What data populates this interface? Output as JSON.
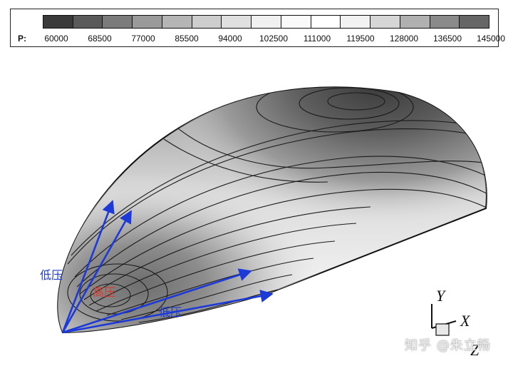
{
  "legend": {
    "label": "P:",
    "ticks": [
      "60000",
      "68500",
      "77000",
      "85500",
      "94000",
      "102500",
      "111000",
      "119500",
      "128000",
      "136500",
      "145000"
    ],
    "swatches": [
      "#3a3a3a",
      "#5a5a5a",
      "#7b7b7b",
      "#9a9a9a",
      "#b5b5b5",
      "#cdcdcd",
      "#e0e0e0",
      "#f0f0f0",
      "#fafafa",
      "#ffffff",
      "#f2f2f2",
      "#d6d6d6",
      "#b0b0b0",
      "#8a8a8a",
      "#666666"
    ]
  },
  "annotations": {
    "high_pressure": "高压",
    "low_pressure_left": "低压",
    "low_pressure_bottom": "低压"
  },
  "axes": {
    "y": "Y",
    "x": "X",
    "z": "Z"
  },
  "watermark": "知乎 @朱立畅",
  "colors": {
    "arrow": "#1d3ad6",
    "high_label": "#d63a2b",
    "low_label": "#1d3ad6"
  }
}
